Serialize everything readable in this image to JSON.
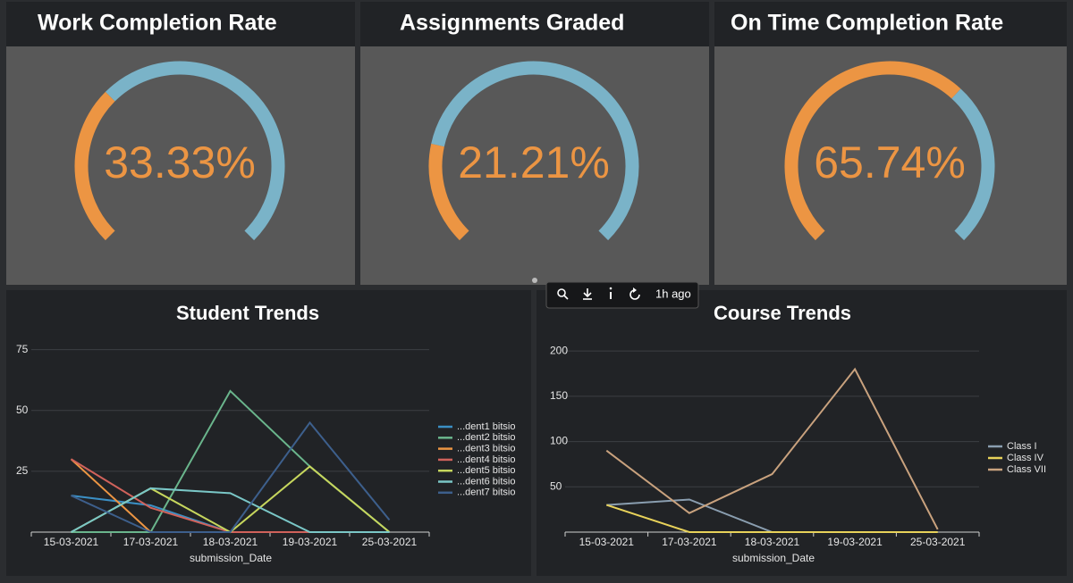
{
  "chart_data": [
    {
      "type": "gauge",
      "title": "Work Completion Rate",
      "values": [
        33.33
      ],
      "value_labels": [
        "33.33%"
      ],
      "ylim": [
        0,
        100
      ],
      "color": "#ec9543",
      "track_color": "#7ab3c8"
    },
    {
      "type": "gauge",
      "title": "Assignments Graded",
      "values": [
        21.21
      ],
      "value_labels": [
        "21.21%"
      ],
      "ylim": [
        0,
        100
      ],
      "color": "#ec9543",
      "track_color": "#7ab3c8"
    },
    {
      "type": "gauge",
      "title": "On Time Completion Rate",
      "values": [
        65.74
      ],
      "value_labels": [
        "65.74%"
      ],
      "ylim": [
        0,
        100
      ],
      "color": "#ec9543",
      "track_color": "#7ab3c8"
    },
    {
      "type": "line",
      "title": "Student Trends",
      "x_label": "submission_Date",
      "categories": [
        "15-03-2021",
        "17-03-2021",
        "18-03-2021",
        "19-03-2021",
        "25-03-2021"
      ],
      "ylim": [
        0,
        80
      ],
      "yticks": [
        25,
        50,
        75
      ],
      "grid": true,
      "series": [
        {
          "name": "...dent1 bitsio",
          "color": "#3b8fc4",
          "values": [
            15,
            11,
            0,
            0,
            0
          ]
        },
        {
          "name": "...dent2 bitsio",
          "color": "#6ab58c",
          "values": [
            0,
            0,
            58,
            27,
            0
          ]
        },
        {
          "name": "...dent3 bitsio",
          "color": "#ec9543",
          "values": [
            30,
            0,
            0,
            0,
            0
          ]
        },
        {
          "name": "...dent4 bitsio",
          "color": "#d0625b",
          "values": [
            30,
            10,
            0,
            0,
            0
          ]
        },
        {
          "name": "...dent5 bitsio",
          "color": "#c6d65d",
          "values": [
            0,
            18,
            0,
            27,
            0
          ]
        },
        {
          "name": "...dent6 bitsio",
          "color": "#7ac7c7",
          "values": [
            0,
            18,
            16,
            0,
            0
          ]
        },
        {
          "name": "...dent7 bitsio",
          "color": "#3d5f8c",
          "values": [
            15,
            0,
            0,
            45,
            5
          ]
        }
      ]
    },
    {
      "type": "line",
      "title": "Course Trends",
      "x_label": "submission_Date",
      "categories": [
        "15-03-2021",
        "17-03-2021",
        "18-03-2021",
        "19-03-2021",
        "25-03-2021"
      ],
      "ylim": [
        0,
        210
      ],
      "yticks": [
        50,
        100,
        150,
        200
      ],
      "grid": true,
      "series": [
        {
          "name": "Class I",
          "color": "#8a9eb0",
          "values": [
            30,
            36,
            0,
            0,
            0
          ]
        },
        {
          "name": "Class IV",
          "color": "#e8d25a",
          "values": [
            30,
            0,
            0,
            0,
            0
          ]
        },
        {
          "name": "Class VII",
          "color": "#c9a27e",
          "values": [
            90,
            21,
            64,
            180,
            3
          ]
        }
      ]
    }
  ],
  "toolbar": {
    "age": "1h ago"
  }
}
